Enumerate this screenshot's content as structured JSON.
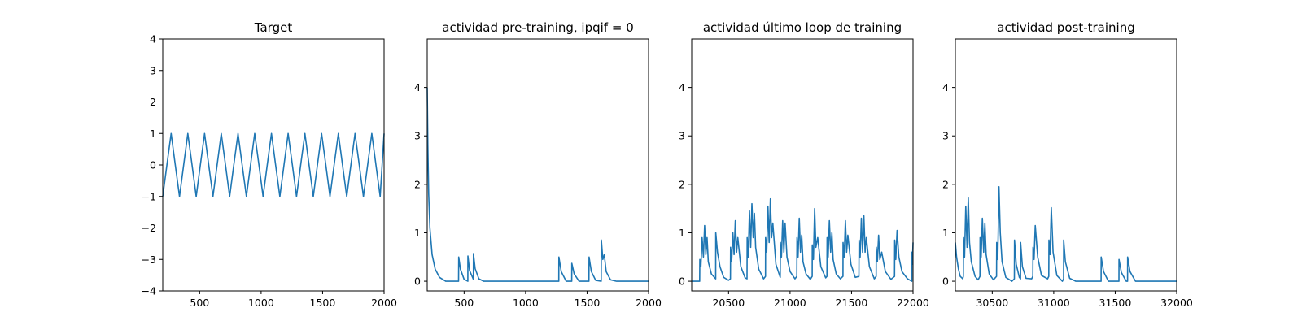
{
  "chart_data": [
    {
      "type": "line",
      "title": "Target",
      "xlabel": "",
      "ylabel": "",
      "xlim": [
        200,
        2000
      ],
      "ylim": [
        -4,
        4
      ],
      "xticks": [
        500,
        1000,
        1500,
        2000
      ],
      "yticks": [
        -4,
        -3,
        -2,
        -1,
        0,
        1,
        2,
        3,
        4
      ],
      "grid": false,
      "series": [
        {
          "color": "#1f77b4",
          "x": [
            200,
            234,
            268,
            302,
            336,
            370,
            404,
            438,
            472,
            506,
            540,
            574,
            608,
            642,
            676,
            710,
            744,
            778,
            812,
            846,
            880,
            914,
            948,
            982,
            1016,
            1050,
            1084,
            1118,
            1152,
            1186,
            1220,
            1254,
            1288,
            1322,
            1356,
            1390,
            1424,
            1458,
            1492,
            1526,
            1560,
            1594,
            1628,
            1662,
            1696,
            1730,
            1764,
            1798,
            1832,
            1866,
            1900,
            1934,
            1968,
            2000
          ],
          "y": [
            -1,
            0,
            1,
            0,
            -1,
            0,
            1,
            0,
            -1,
            0,
            1,
            0,
            -1,
            0,
            1,
            0,
            -1,
            0,
            1,
            0,
            -1,
            0,
            1,
            0,
            -1,
            0,
            1,
            0,
            -1,
            0,
            1,
            0,
            -1,
            0,
            1,
            0,
            -1,
            0,
            1,
            0,
            -1,
            0,
            1,
            0,
            -1,
            0,
            1,
            0,
            -1,
            0,
            1,
            0,
            -1,
            1
          ]
        }
      ]
    },
    {
      "type": "line",
      "title": "actividad pre-training, ipqif = 0",
      "xlabel": "",
      "ylabel": "",
      "xlim": [
        200,
        2000
      ],
      "ylim": [
        -0.2,
        5
      ],
      "xticks": [
        500,
        1000,
        1500,
        2000
      ],
      "yticks": [
        0,
        1,
        2,
        3,
        4
      ],
      "grid": false,
      "series": [
        {
          "color": "#1f77b4",
          "x": [
            200,
            205,
            212,
            222,
            240,
            265,
            300,
            350,
            455,
            456,
            470,
            500,
            530,
            531,
            545,
            575,
            576,
            590,
            620,
            660,
            1270,
            1271,
            1290,
            1330,
            1375,
            1376,
            1395,
            1435,
            1515,
            1516,
            1535,
            1570,
            1615,
            1616,
            1628,
            1640,
            1655,
            1690,
            1740,
            2000
          ],
          "y": [
            4.0,
            2.8,
            1.8,
            1.1,
            0.55,
            0.25,
            0.08,
            0.0,
            0.0,
            0.5,
            0.25,
            0.04,
            0.0,
            0.52,
            0.22,
            0.04,
            0.57,
            0.26,
            0.05,
            0.0,
            0.0,
            0.5,
            0.2,
            0.0,
            0.0,
            0.37,
            0.15,
            0.0,
            0.0,
            0.5,
            0.2,
            0.02,
            0.0,
            0.85,
            0.45,
            0.55,
            0.2,
            0.03,
            0.0,
            0.0
          ]
        }
      ]
    },
    {
      "type": "line",
      "title": "actividad último loop de training",
      "xlabel": "",
      "ylabel": "",
      "xlim": [
        20200,
        22000
      ],
      "ylim": [
        -0.2,
        5
      ],
      "xticks": [
        20500,
        21000,
        21500,
        22000
      ],
      "yticks": [
        0,
        1,
        2,
        3,
        4
      ],
      "grid": false,
      "series": [
        {
          "color": "#1f77b4",
          "x": [
            20200,
            20265,
            20266,
            20275,
            20285,
            20295,
            20305,
            20315,
            20325,
            20335,
            20360,
            20395,
            20396,
            20410,
            20430,
            20460,
            20500,
            20515,
            20516,
            20525,
            20535,
            20545,
            20555,
            20565,
            20575,
            20600,
            20635,
            20650,
            20651,
            20660,
            20670,
            20680,
            20690,
            20700,
            20710,
            20720,
            20745,
            20785,
            20800,
            20801,
            20810,
            20820,
            20830,
            20840,
            20850,
            20860,
            20885,
            20920,
            20921,
            20930,
            20940,
            20950,
            20960,
            20975,
            21000,
            21040,
            21055,
            21056,
            21065,
            21075,
            21085,
            21095,
            21105,
            21130,
            21165,
            21180,
            21181,
            21190,
            21200,
            21210,
            21225,
            21250,
            21290,
            21300,
            21301,
            21310,
            21320,
            21330,
            21340,
            21350,
            21375,
            21410,
            21430,
            21431,
            21440,
            21450,
            21460,
            21470,
            21495,
            21530,
            21560,
            21561,
            21570,
            21580,
            21590,
            21600,
            21610,
            21620,
            21645,
            21685,
            21700,
            21701,
            21710,
            21720,
            21730,
            21745,
            21775,
            21820,
            21850,
            21851,
            21860,
            21870,
            21885,
            21910,
            21955,
            21990,
            21991,
            21995,
            22000
          ],
          "y": [
            0.0,
            0.0,
            0.45,
            0.3,
            0.9,
            0.5,
            1.15,
            0.55,
            0.9,
            0.4,
            0.15,
            0.05,
            1.0,
            0.6,
            0.3,
            0.08,
            0.02,
            0.05,
            0.7,
            0.4,
            1.0,
            0.55,
            1.25,
            0.6,
            0.9,
            0.3,
            0.07,
            0.05,
            0.9,
            0.5,
            1.45,
            0.7,
            1.6,
            0.9,
            1.4,
            0.7,
            0.25,
            0.05,
            0.1,
            0.9,
            0.6,
            1.55,
            0.8,
            1.7,
            0.9,
            1.2,
            0.35,
            0.08,
            0.8,
            0.5,
            1.25,
            0.6,
            1.2,
            0.5,
            0.2,
            0.05,
            0.1,
            0.9,
            0.5,
            1.3,
            0.6,
            0.95,
            0.4,
            0.15,
            0.04,
            0.1,
            0.75,
            0.45,
            1.5,
            0.7,
            0.9,
            0.3,
            0.07,
            0.1,
            0.9,
            0.5,
            1.25,
            0.6,
            1.0,
            0.45,
            0.15,
            0.05,
            0.1,
            0.8,
            0.5,
            1.25,
            0.6,
            0.95,
            0.35,
            0.08,
            0.1,
            0.85,
            0.5,
            1.3,
            0.6,
            1.35,
            0.6,
            0.9,
            0.3,
            0.05,
            0.1,
            0.7,
            0.4,
            0.95,
            0.45,
            0.6,
            0.2,
            0.04,
            0.1,
            0.85,
            0.45,
            1.05,
            0.5,
            0.2,
            0.05,
            0.0,
            0.6,
            0.35,
            0.8
          ]
        }
      ]
    },
    {
      "type": "line",
      "title": "actividad post-training",
      "xlabel": "",
      "ylabel": "",
      "xlim": [
        30200,
        32000
      ],
      "ylim": [
        -0.2,
        5
      ],
      "xticks": [
        30500,
        31000,
        31500,
        32000
      ],
      "yticks": [
        0,
        1,
        2,
        3,
        4
      ],
      "grid": false,
      "series": [
        {
          "color": "#1f77b4",
          "x": [
            30200,
            30210,
            30225,
            30240,
            30260,
            30265,
            30266,
            30275,
            30285,
            30295,
            30305,
            30315,
            30330,
            30360,
            30385,
            30400,
            30401,
            30410,
            30420,
            30430,
            30440,
            30450,
            30475,
            30510,
            30535,
            30536,
            30545,
            30555,
            30565,
            30580,
            30610,
            30660,
            30680,
            30681,
            30695,
            30720,
            30730,
            30731,
            30745,
            30775,
            30820,
            30830,
            30831,
            30840,
            30850,
            30870,
            30900,
            30950,
            30960,
            30961,
            30970,
            30980,
            30995,
            31025,
            31070,
            31080,
            31081,
            31095,
            31130,
            31180,
            31385,
            31386,
            31405,
            31445,
            31530,
            31531,
            31550,
            31590,
            31600,
            31601,
            31620,
            31665,
            32000
          ],
          "y": [
            0.8,
            0.5,
            0.25,
            0.1,
            0.05,
            0.1,
            0.9,
            0.5,
            1.55,
            0.7,
            1.72,
            0.8,
            0.4,
            0.1,
            0.03,
            0.1,
            0.9,
            0.5,
            1.3,
            0.6,
            1.2,
            0.55,
            0.15,
            0.03,
            0.1,
            0.8,
            0.45,
            1.95,
            1.0,
            0.4,
            0.08,
            0.0,
            0.05,
            0.85,
            0.35,
            0.08,
            0.05,
            0.8,
            0.3,
            0.06,
            0.05,
            0.1,
            0.7,
            0.45,
            1.15,
            0.5,
            0.12,
            0.05,
            0.1,
            0.85,
            0.55,
            1.52,
            0.6,
            0.12,
            0.0,
            0.05,
            0.85,
            0.4,
            0.06,
            0.0,
            0.0,
            0.5,
            0.2,
            0.0,
            0.0,
            0.45,
            0.18,
            0.0,
            0.0,
            0.5,
            0.2,
            0.0,
            0.0
          ]
        }
      ]
    }
  ]
}
